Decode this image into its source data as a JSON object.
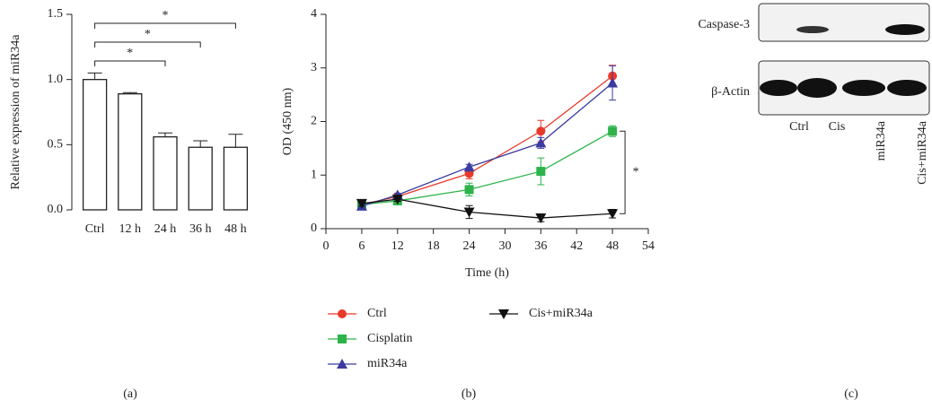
{
  "chart_data": [
    {
      "type": "bar",
      "panel": "(a)",
      "ylabel": "Relative expression of miR34a",
      "categories": [
        "Ctrl",
        "12 h",
        "24 h",
        "36 h",
        "48 h"
      ],
      "values": [
        1.0,
        0.89,
        0.56,
        0.48,
        0.48
      ],
      "errors": [
        0.05,
        0.01,
        0.03,
        0.05,
        0.1
      ],
      "color": "#ffffff",
      "ylim": [
        0,
        1.5
      ],
      "yticks": [
        {
          "value": 0,
          "label": "0.0"
        },
        0.5,
        {
          "value": 1,
          "label": "1.0"
        },
        1.5
      ],
      "annotations": [
        "*",
        "*",
        "*"
      ]
    },
    {
      "type": "line",
      "panel": "(b)",
      "xlabel": "Time (h)",
      "ylabel": "OD (450 nm)",
      "x": [
        6,
        12,
        24,
        36,
        48
      ],
      "xlim": [
        0,
        54
      ],
      "xticks": [
        0,
        6,
        12,
        18,
        24,
        30,
        36,
        42,
        48,
        54
      ],
      "ylim": [
        0,
        4
      ],
      "yticks": [
        0,
        1,
        2,
        3,
        4
      ],
      "series": [
        {
          "name": "Ctrl",
          "color": "#e8392b",
          "marker": "circle",
          "values": [
            0.45,
            0.6,
            1.03,
            1.82,
            2.85
          ],
          "errors": [
            0.04,
            0.04,
            0.1,
            0.2,
            0.2
          ]
        },
        {
          "name": "Cisplatin",
          "color": "#2db34a",
          "marker": "square",
          "values": [
            0.45,
            0.52,
            0.73,
            1.07,
            1.82
          ],
          "errors": [
            0.04,
            0.04,
            0.12,
            0.25,
            0.1
          ]
        },
        {
          "name": "miR34a",
          "color": "#3b3ba0",
          "marker": "triangle",
          "values": [
            0.42,
            0.63,
            1.15,
            1.6,
            2.72
          ],
          "errors": [
            0.04,
            0.03,
            0.05,
            0.1,
            0.32
          ]
        },
        {
          "name": "Cis+miR34a",
          "color": "#111111",
          "marker": "triangle-down",
          "values": [
            0.47,
            0.55,
            0.31,
            0.2,
            0.28
          ],
          "errors": [
            0.05,
            0.04,
            0.12,
            0.07,
            0.08
          ]
        }
      ],
      "annotations": [
        "*"
      ]
    }
  ],
  "blot": {
    "panel": "(c)",
    "rows": [
      "Caspase-3",
      "β-Actin"
    ],
    "lanes": [
      "Ctrl",
      "Cis",
      "miR34a",
      "Cis+miR34a"
    ]
  }
}
